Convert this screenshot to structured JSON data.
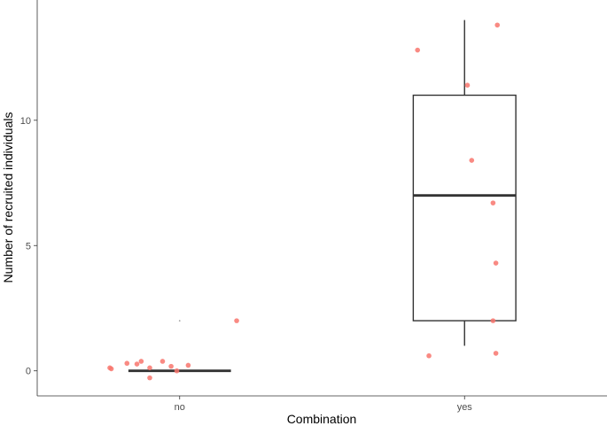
{
  "chart_data": {
    "type": "box",
    "xlabel": "Combination",
    "ylabel": "Number of recruited individuals",
    "categories": [
      "no",
      "yes"
    ],
    "y_ticks": [
      "0",
      "5",
      "10"
    ],
    "ylim": [
      -1,
      14.8
    ],
    "grid": false,
    "boxes": [
      {
        "category": "no",
        "lower_whisker": 0,
        "q1": 0,
        "median": 0,
        "q3": 0,
        "upper_whisker": 0,
        "outliers": [
          2
        ]
      },
      {
        "category": "yes",
        "lower_whisker": 1,
        "q1": 2,
        "median": 7,
        "q3": 11,
        "upper_whisker": 14,
        "outliers": []
      }
    ],
    "points": [
      {
        "category": "no",
        "jitter": -0.49,
        "y": 0.12
      },
      {
        "category": "no",
        "jitter": -0.48,
        "y": 0.08
      },
      {
        "category": "no",
        "jitter": -0.37,
        "y": 0.3
      },
      {
        "category": "no",
        "jitter": -0.3,
        "y": 0.27
      },
      {
        "category": "no",
        "jitter": -0.27,
        "y": 0.38
      },
      {
        "category": "no",
        "jitter": -0.21,
        "y": 0.12
      },
      {
        "category": "no",
        "jitter": -0.12,
        "y": 0.38
      },
      {
        "category": "no",
        "jitter": -0.06,
        "y": 0.18
      },
      {
        "category": "no",
        "jitter": -0.02,
        "y": 0.0
      },
      {
        "category": "no",
        "jitter": 0.06,
        "y": 0.22
      },
      {
        "category": "no",
        "jitter": -0.21,
        "y": -0.28
      },
      {
        "category": "no",
        "jitter": 0.4,
        "y": 2.0
      },
      {
        "category": "yes",
        "jitter": -0.33,
        "y": 12.8
      },
      {
        "category": "yes",
        "jitter": 0.23,
        "y": 13.8
      },
      {
        "category": "yes",
        "jitter": 0.02,
        "y": 11.4
      },
      {
        "category": "yes",
        "jitter": 0.05,
        "y": 8.4
      },
      {
        "category": "yes",
        "jitter": 0.2,
        "y": 6.7
      },
      {
        "category": "yes",
        "jitter": 0.22,
        "y": 4.3
      },
      {
        "category": "yes",
        "jitter": 0.2,
        "y": 2.0
      },
      {
        "category": "yes",
        "jitter": -0.25,
        "y": 0.6
      },
      {
        "category": "yes",
        "jitter": 0.22,
        "y": 0.7
      }
    ],
    "point_color": "#F8766D",
    "box_color": "#333333"
  }
}
